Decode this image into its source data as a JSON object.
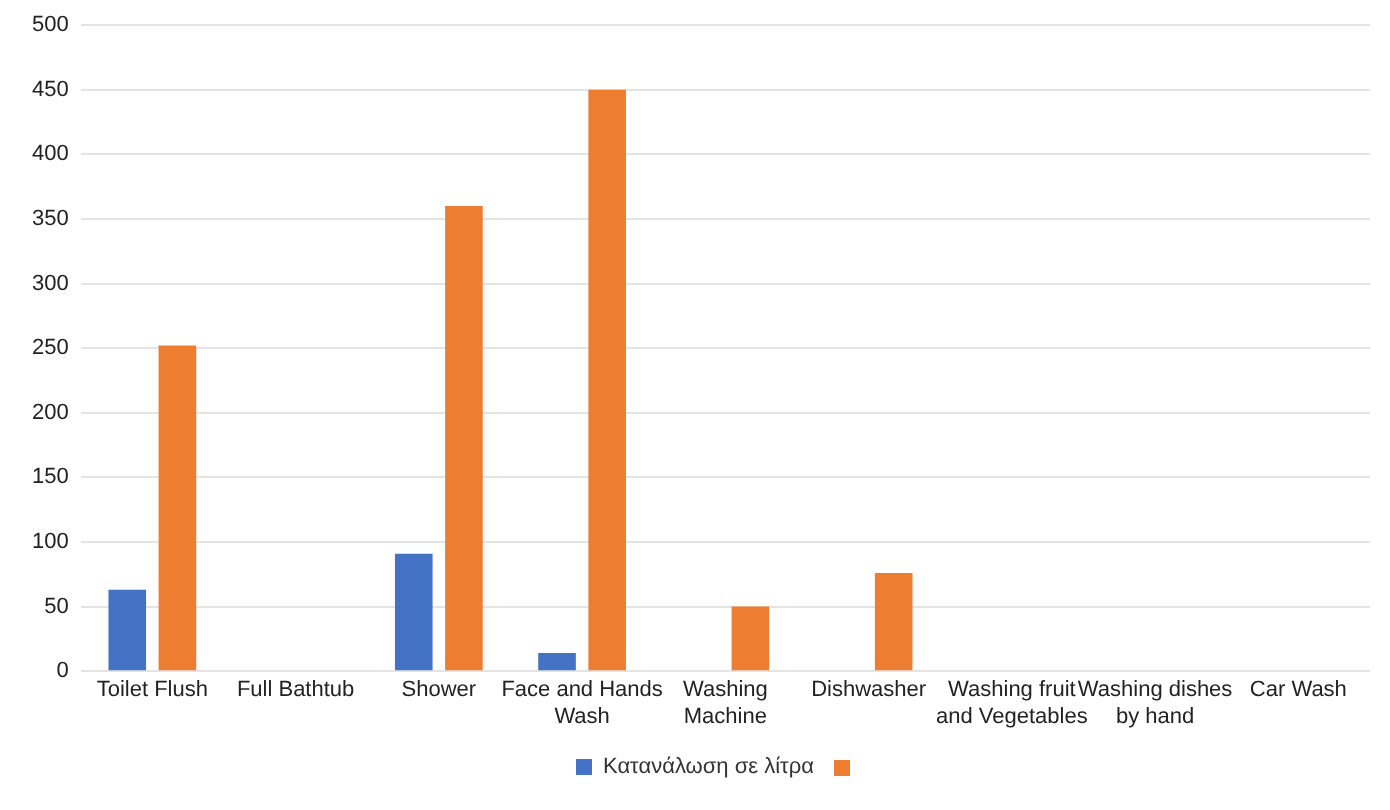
{
  "chart_data": {
    "type": "bar",
    "categories": [
      "Toilet Flush",
      "Full Bathtub",
      "Shower",
      "Face and Hands Wash",
      "Washing Machine",
      "Dishwasher",
      "Washing fruit and Vegetables",
      "Washing dishes by hand",
      "Car Wash"
    ],
    "series": [
      {
        "name": "Κατανάλωση σε λίτρα",
        "color": "#4472c4",
        "values": [
          63,
          null,
          91,
          14,
          null,
          null,
          null,
          null,
          null
        ]
      },
      {
        "color": "#ed7d31",
        "values": [
          252,
          null,
          360,
          450,
          50,
          76,
          null,
          null,
          null
        ]
      }
    ],
    "ylim": [
      0,
      500
    ],
    "yticks": [
      0,
      50,
      100,
      150,
      200,
      250,
      300,
      350,
      400,
      450,
      500
    ],
    "grid": "y",
    "legend": "bottom"
  }
}
